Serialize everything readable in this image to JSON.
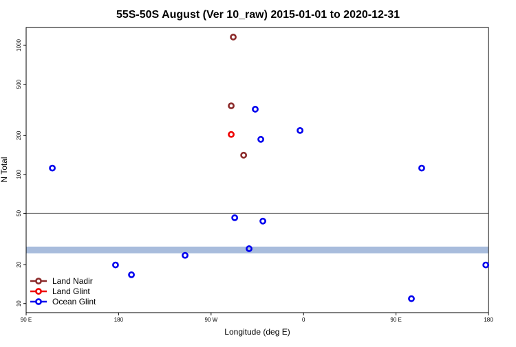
{
  "chart_data": {
    "type": "scatter",
    "title": "55S-50S August (Ver 10_raw)   2015-01-01 to 2020-12-31",
    "x_label": "Longitude (deg E)",
    "y_label": "N Total",
    "xlim": [
      90,
      540
    ],
    "ylim": [
      8.5,
      1375
    ],
    "log_y": true,
    "legend": "bottom-left",
    "xticks": [
      {
        "value": 90,
        "label": "90 E"
      },
      180,
      {
        "value": 270,
        "label": "90 W"
      },
      {
        "value": 360,
        "label": "0"
      },
      {
        "value": 450,
        "label": "90 E"
      },
      {
        "value": 540,
        "label": "180"
      }
    ],
    "yticks": [
      10,
      20,
      50,
      100,
      200,
      500,
      1000
    ],
    "hline": 50,
    "hline_color": "#555555",
    "band": [
      24.5,
      27.6
    ],
    "band_color": "#a8bcdc",
    "series": [
      {
        "name": "Land Nadir",
        "color": "#8b2a2a",
        "x": [
          291.6,
          289.6,
          301.7
        ],
        "values": [
          1159,
          340,
          141
        ]
      },
      {
        "name": "Land Glint",
        "color": "#ee0000",
        "x": [
          289.6
        ],
        "values": [
          204
        ]
      },
      {
        "name": "Ocean Glint",
        "color": "#0000ee",
        "x": [
          115.5,
          177,
          192.5,
          244.7,
          293,
          307,
          313,
          318.4,
          320.4,
          356.6,
          465,
          475,
          537.4
        ],
        "values": [
          112,
          19.9,
          16.7,
          23.6,
          46.2,
          26.6,
          320,
          187,
          43.5,
          219,
          10.9,
          112,
          19.9
        ]
      }
    ]
  }
}
